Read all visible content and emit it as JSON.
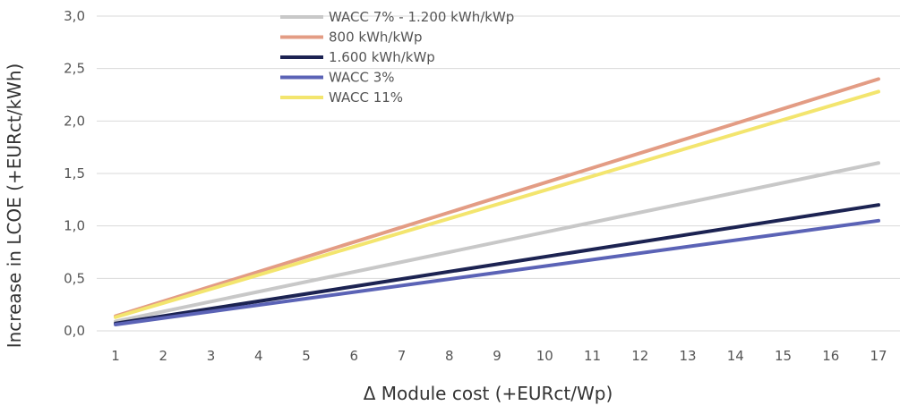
{
  "chart_data": {
    "type": "line",
    "xlabel": "Δ Module cost (+EURct/Wp)",
    "ylabel": "Increase in LCOE (+EURct/kWh)",
    "x": [
      1,
      17
    ],
    "xticks": [
      "1",
      "2",
      "3",
      "4",
      "5",
      "6",
      "7",
      "8",
      "9",
      "10",
      "11",
      "12",
      "13",
      "14",
      "15",
      "16",
      "17"
    ],
    "xlim": [
      1,
      17
    ],
    "ylim": [
      0,
      3
    ],
    "yticks": [
      "0,0",
      "0,5",
      "1,0",
      "1,5",
      "2,0",
      "2,5",
      "3,0"
    ],
    "grid": "horizontal",
    "legend_position": "top-center",
    "series": [
      {
        "name": "WACC 7% - 1.200 kWh/kWp",
        "color": "#c8c8c8",
        "values": [
          0.09,
          1.6
        ]
      },
      {
        "name": "800 kWh/kWp",
        "color": "#e39c84",
        "values": [
          0.14,
          2.4
        ]
      },
      {
        "name": "1.600 kWh/kWp",
        "color": "#1c2352",
        "values": [
          0.07,
          1.2
        ]
      },
      {
        "name": "WACC 3%",
        "color": "#5b63b6",
        "values": [
          0.06,
          1.05
        ]
      },
      {
        "name": "WACC 11%",
        "color": "#f3e56e",
        "values": [
          0.13,
          2.28
        ]
      }
    ]
  }
}
